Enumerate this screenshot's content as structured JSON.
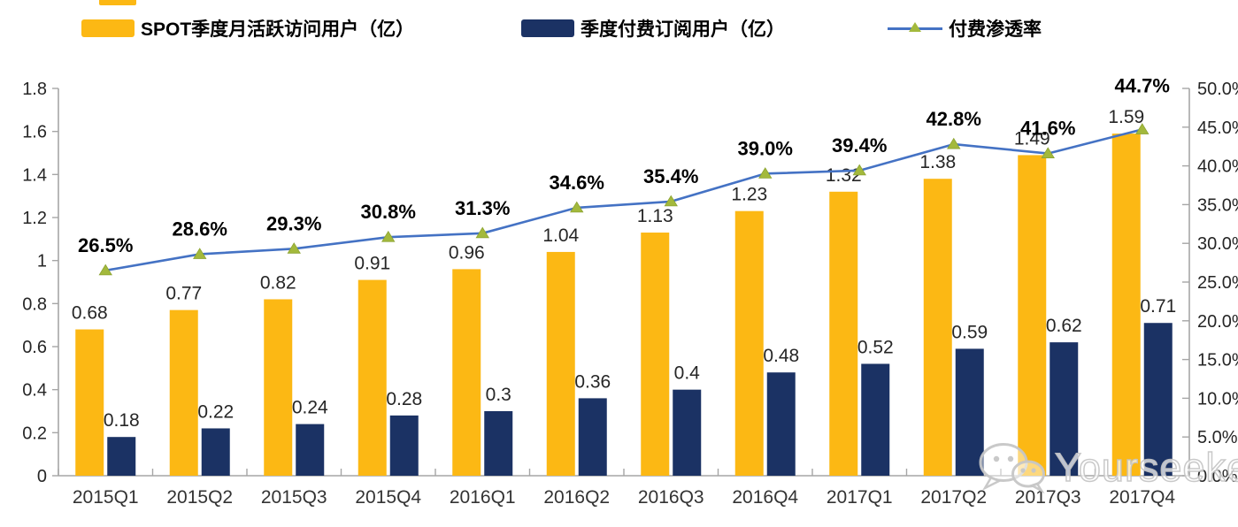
{
  "legend": [
    {
      "label": "SPOT季度月活跃访问用户（亿）",
      "swatch": "bar",
      "color": "#FCB814"
    },
    {
      "label": "季度付费订阅用户（亿）",
      "swatch": "bar",
      "color": "#1B3264"
    },
    {
      "label": "付费渗透率",
      "swatch": "line",
      "color": "#4472C4",
      "marker_color": "#A3B93C"
    }
  ],
  "watermark": {
    "text": "Yourseeker",
    "icon": "wechat-icon"
  },
  "chart_data": {
    "type": "bar",
    "subtype": "bar+line combo",
    "categories": [
      "2015Q1",
      "2015Q2",
      "2015Q3",
      "2015Q4",
      "2016Q1",
      "2016Q2",
      "2016Q3",
      "2016Q4",
      "2017Q1",
      "2017Q2",
      "2017Q3",
      "2017Q4"
    ],
    "series": [
      {
        "name": "SPOT季度月活跃访问用户（亿）",
        "type": "bar",
        "axis": "left",
        "color": "#FCB814",
        "values": [
          0.68,
          0.77,
          0.82,
          0.91,
          0.96,
          1.04,
          1.13,
          1.23,
          1.32,
          1.38,
          1.49,
          1.59
        ],
        "labels": [
          "0.68",
          "0.77",
          "0.82",
          "0.91",
          "0.96",
          "1.04",
          "1.13",
          "1.23",
          "1.32",
          "1.38",
          "1.49",
          "1.59"
        ]
      },
      {
        "name": "季度付费订阅用户（亿）",
        "type": "bar",
        "axis": "left",
        "color": "#1B3264",
        "values": [
          0.18,
          0.22,
          0.24,
          0.28,
          0.3,
          0.36,
          0.4,
          0.48,
          0.52,
          0.59,
          0.62,
          0.71
        ],
        "labels": [
          "0.18",
          "0.22",
          "0.24",
          "0.28",
          "0.3",
          "0.36",
          "0.4",
          "0.48",
          "0.52",
          "0.59",
          "0.62",
          "0.71"
        ]
      },
      {
        "name": "付费渗透率",
        "type": "line",
        "axis": "right",
        "color": "#4472C4",
        "marker": "triangle",
        "marker_color": "#A3B93C",
        "values": [
          26.5,
          28.6,
          29.3,
          30.8,
          31.3,
          34.6,
          35.4,
          39.0,
          39.4,
          42.8,
          41.6,
          44.7
        ],
        "labels": [
          "26.5%",
          "28.6%",
          "29.3%",
          "30.8%",
          "31.3%",
          "34.6%",
          "35.4%",
          "39.0%",
          "39.4%",
          "42.8%",
          "41.6%",
          "44.7%"
        ]
      }
    ],
    "left_axis": {
      "min": 0,
      "max": 1.8,
      "ticks": [
        "0",
        "0.2",
        "0.4",
        "0.6",
        "0.8",
        "1",
        "1.2",
        "1.4",
        "1.6",
        "1.8"
      ]
    },
    "right_axis": {
      "min": 0,
      "max": 50,
      "ticks": [
        "0.0%",
        "5.0%",
        "10.0%",
        "15.0%",
        "20.0%",
        "25.0%",
        "30.0%",
        "35.0%",
        "40.0%",
        "45.0%",
        "50.0%"
      ]
    },
    "grid": false,
    "legend_position": "top",
    "axis_color": "#A6A6A6",
    "label_color": "#262626"
  }
}
